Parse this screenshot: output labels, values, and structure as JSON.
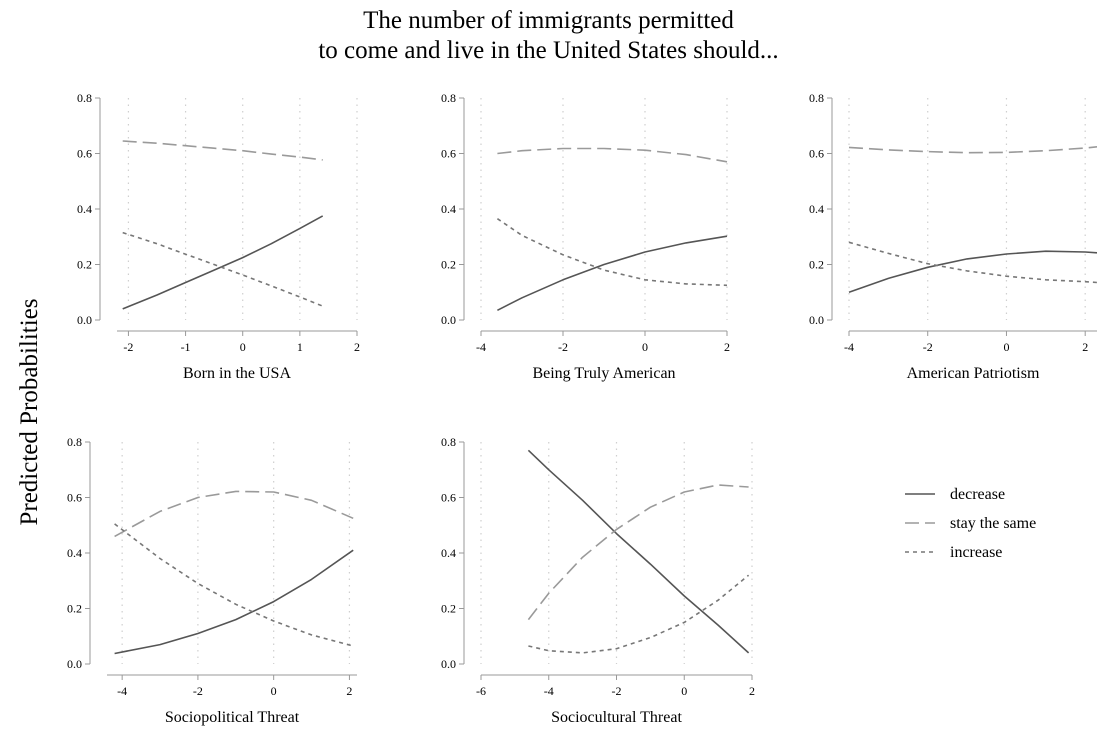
{
  "title_lines": [
    "The number of immigrants permitted",
    "to come and live in the United States should..."
  ],
  "ylabel": "Predicted Probabilities",
  "legend": [
    {
      "label": "decrease",
      "style": "solid",
      "color": "#555555"
    },
    {
      "label": "stay the same",
      "style": "longdash",
      "color": "#9a9a9a"
    },
    {
      "label": "increase",
      "style": "shortdash",
      "color": "#777777"
    }
  ],
  "chart_data": [
    {
      "type": "line",
      "xlabel": "Born in the USA",
      "ylabel": "",
      "xlim": [
        -2.2,
        2
      ],
      "ylim": [
        0,
        0.8
      ],
      "xticks": [
        -2,
        -1,
        0,
        1,
        2
      ],
      "yticks": [
        0,
        0.2,
        0.4,
        0.6,
        0.8
      ],
      "series": [
        {
          "name": "decrease",
          "x": [
            -2.1,
            -1.5,
            -1,
            -0.5,
            0,
            0.5,
            1,
            1.4
          ],
          "y": [
            0.04,
            0.09,
            0.135,
            0.18,
            0.225,
            0.275,
            0.33,
            0.375
          ]
        },
        {
          "name": "stay the same",
          "x": [
            -2.1,
            -1.5,
            -1,
            -0.5,
            0,
            0.5,
            1,
            1.4
          ],
          "y": [
            0.645,
            0.637,
            0.628,
            0.619,
            0.61,
            0.598,
            0.587,
            0.577
          ]
        },
        {
          "name": "increase",
          "x": [
            -2.1,
            -1.5,
            -1,
            -0.5,
            0,
            0.5,
            1,
            1.4
          ],
          "y": [
            0.315,
            0.275,
            0.237,
            0.2,
            0.162,
            0.123,
            0.083,
            0.05
          ]
        }
      ]
    },
    {
      "type": "line",
      "xlabel": "Being Truly American",
      "ylabel": "",
      "xlim": [
        -4,
        2
      ],
      "ylim": [
        0,
        0.8
      ],
      "xticks": [
        -4,
        -2,
        0,
        2
      ],
      "yticks": [
        0,
        0.2,
        0.4,
        0.6,
        0.8
      ],
      "series": [
        {
          "name": "decrease",
          "x": [
            -3.6,
            -3,
            -2,
            -1,
            0,
            1,
            2
          ],
          "y": [
            0.035,
            0.08,
            0.145,
            0.2,
            0.245,
            0.278,
            0.302
          ]
        },
        {
          "name": "stay the same",
          "x": [
            -3.6,
            -3,
            -2,
            -1,
            0,
            1,
            2
          ],
          "y": [
            0.6,
            0.61,
            0.618,
            0.618,
            0.612,
            0.596,
            0.57
          ]
        },
        {
          "name": "increase",
          "x": [
            -3.6,
            -3,
            -2,
            -1,
            0,
            1,
            2
          ],
          "y": [
            0.365,
            0.305,
            0.235,
            0.18,
            0.145,
            0.13,
            0.125
          ]
        }
      ]
    },
    {
      "type": "line",
      "xlabel": "American Patriotism",
      "ylabel": "",
      "xlim": [
        -4,
        2.3
      ],
      "ylim": [
        0,
        0.8
      ],
      "xticks": [
        -4,
        -2,
        0,
        2
      ],
      "yticks": [
        0,
        0.2,
        0.4,
        0.6,
        0.8
      ],
      "series": [
        {
          "name": "decrease",
          "x": [
            -4,
            -3,
            -2,
            -1,
            0,
            1,
            2,
            2.3
          ],
          "y": [
            0.1,
            0.15,
            0.19,
            0.22,
            0.238,
            0.248,
            0.245,
            0.242
          ]
        },
        {
          "name": "stay the same",
          "x": [
            -4,
            -3,
            -2,
            -1,
            0,
            1,
            2,
            2.3
          ],
          "y": [
            0.622,
            0.613,
            0.607,
            0.603,
            0.604,
            0.61,
            0.62,
            0.624
          ]
        },
        {
          "name": "increase",
          "x": [
            -4,
            -3,
            -2,
            -1,
            0,
            1,
            2,
            2.3
          ],
          "y": [
            0.28,
            0.24,
            0.203,
            0.177,
            0.158,
            0.145,
            0.138,
            0.135
          ]
        }
      ]
    },
    {
      "type": "line",
      "xlabel": "Sociopolitical Threat",
      "ylabel": "",
      "xlim": [
        -4.4,
        2.2
      ],
      "ylim": [
        0,
        0.8
      ],
      "xticks": [
        -4,
        -2,
        0,
        2
      ],
      "yticks": [
        0,
        0.2,
        0.4,
        0.6,
        0.8
      ],
      "series": [
        {
          "name": "decrease",
          "x": [
            -4.2,
            -3,
            -2,
            -1,
            0,
            1,
            2.1
          ],
          "y": [
            0.038,
            0.07,
            0.11,
            0.16,
            0.225,
            0.305,
            0.41
          ]
        },
        {
          "name": "stay the same",
          "x": [
            -4.2,
            -3,
            -2,
            -1,
            0,
            1,
            2.1
          ],
          "y": [
            0.46,
            0.55,
            0.6,
            0.622,
            0.62,
            0.59,
            0.525
          ]
        },
        {
          "name": "increase",
          "x": [
            -4.2,
            -3,
            -2,
            -1,
            0,
            1,
            2.1
          ],
          "y": [
            0.505,
            0.38,
            0.29,
            0.215,
            0.155,
            0.105,
            0.065
          ]
        }
      ]
    },
    {
      "type": "line",
      "xlabel": "Sociocultural Threat",
      "ylabel": "",
      "xlim": [
        -6,
        2
      ],
      "ylim": [
        0,
        0.8
      ],
      "xticks": [
        -6,
        -4,
        -2,
        0,
        2
      ],
      "yticks": [
        0,
        0.2,
        0.4,
        0.6,
        0.8
      ],
      "series": [
        {
          "name": "decrease",
          "x": [
            -4.6,
            -4,
            -3,
            -2,
            -1,
            0,
            1,
            1.9
          ],
          "y": [
            0.77,
            0.7,
            0.59,
            0.47,
            0.36,
            0.245,
            0.14,
            0.04
          ]
        },
        {
          "name": "stay the same",
          "x": [
            -4.6,
            -4,
            -3,
            -2,
            -1,
            0,
            1,
            1.9
          ],
          "y": [
            0.16,
            0.255,
            0.385,
            0.485,
            0.565,
            0.62,
            0.645,
            0.638
          ]
        },
        {
          "name": "increase",
          "x": [
            -4.6,
            -4,
            -3,
            -2,
            -1,
            0,
            1,
            1.9
          ],
          "y": [
            0.065,
            0.048,
            0.04,
            0.055,
            0.095,
            0.15,
            0.23,
            0.32
          ]
        }
      ]
    }
  ]
}
